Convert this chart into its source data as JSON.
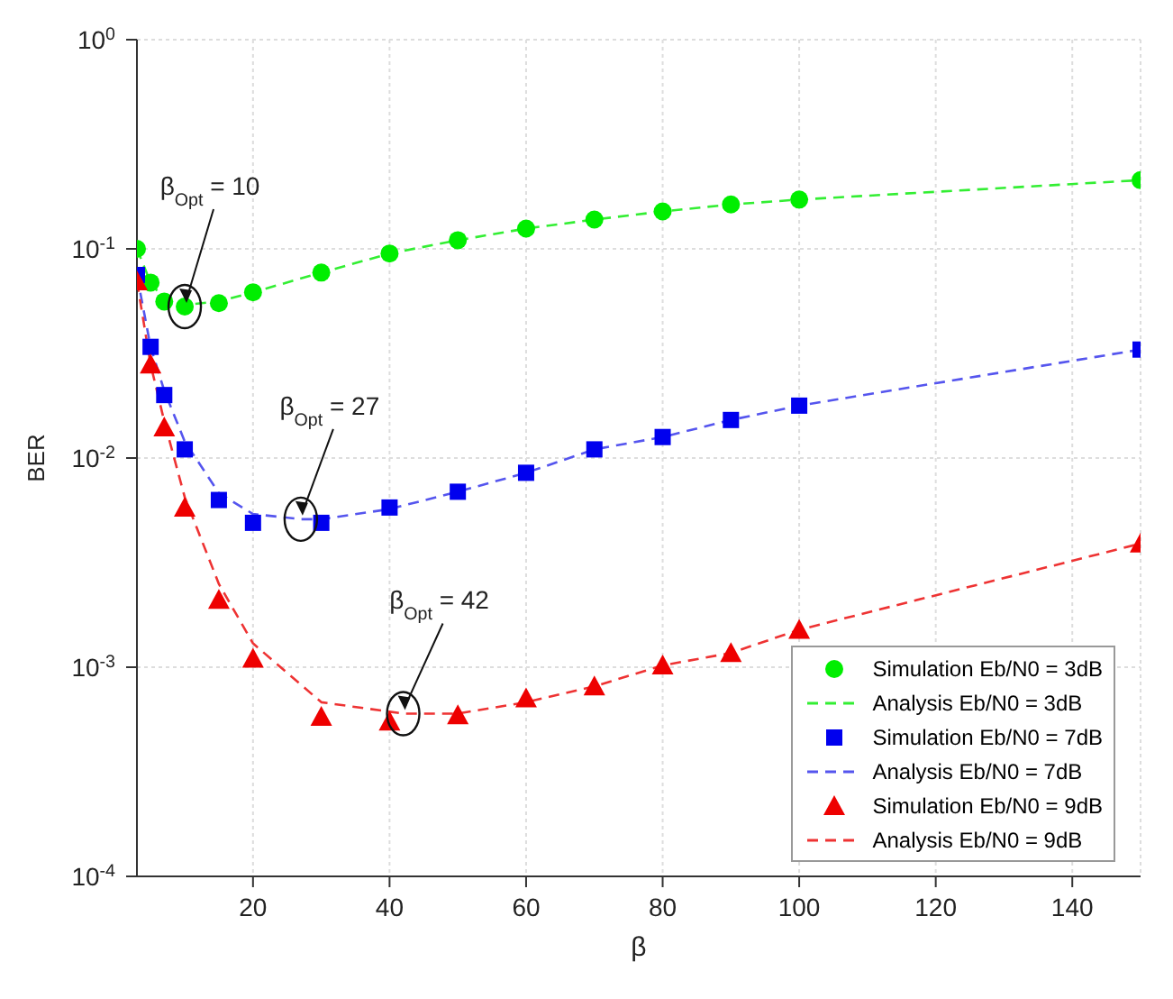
{
  "chart_data": {
    "type": "line",
    "xlabel": "β",
    "ylabel": "BER",
    "log": "y",
    "grid": true,
    "legend": "bottom right",
    "xlim": [
      3,
      150
    ],
    "xticks": [
      20,
      40,
      60,
      80,
      100,
      120,
      140
    ],
    "ylim": [
      0.0001,
      1
    ],
    "yticks": [
      {
        "value": 1,
        "label": "10$^{0}$"
      },
      {
        "value": 0.1,
        "label": "10$^{-1}$"
      },
      {
        "value": 0.01,
        "label": "10$^{-2}$"
      },
      {
        "value": 0.001,
        "label": "10$^{-3}$"
      },
      {
        "value": 0.0001,
        "label": "10$^{-4}$"
      }
    ],
    "series": [
      {
        "name": "Simulation Eb/N0 = 3dB",
        "type": "scatter",
        "marker": "circle",
        "color": "#00ee00",
        "x": [
          3,
          5,
          7,
          10,
          15,
          20,
          30,
          40,
          50,
          60,
          70,
          80,
          90,
          100,
          150
        ],
        "values": [
          0.1,
          0.069,
          0.056,
          0.053,
          0.055,
          0.062,
          0.077,
          0.095,
          0.11,
          0.125,
          0.138,
          0.151,
          0.163,
          0.172,
          0.213
        ]
      },
      {
        "name": "Analysis Eb/N0 = 3dB",
        "type": "line",
        "line_style": "dashed",
        "marker": "none",
        "color": "#33ee33",
        "x": [
          3,
          5,
          7,
          10,
          15,
          20,
          30,
          40,
          50,
          60,
          70,
          80,
          90,
          100,
          150
        ],
        "values": [
          0.1,
          0.069,
          0.057,
          0.054,
          0.056,
          0.062,
          0.077,
          0.095,
          0.11,
          0.125,
          0.138,
          0.151,
          0.163,
          0.172,
          0.213
        ]
      },
      {
        "name": "Simulation Eb/N0 = 7dB",
        "type": "scatter",
        "marker": "square",
        "color": "#0000ee",
        "x": [
          3,
          5,
          7,
          10,
          15,
          20,
          30,
          40,
          50,
          60,
          70,
          80,
          90,
          100,
          150
        ],
        "values": [
          0.075,
          0.034,
          0.02,
          0.011,
          0.0063,
          0.0049,
          0.0049,
          0.0058,
          0.0069,
          0.0085,
          0.011,
          0.0126,
          0.0152,
          0.0178,
          0.033
        ]
      },
      {
        "name": "Analysis Eb/N0 = 7dB",
        "type": "line",
        "line_style": "dashed",
        "marker": "none",
        "color": "#5555ee",
        "x": [
          3,
          5,
          7,
          10,
          15,
          20,
          27,
          30,
          40,
          50,
          60,
          70,
          80,
          90,
          100,
          150
        ],
        "values": [
          0.075,
          0.034,
          0.021,
          0.012,
          0.0068,
          0.0054,
          0.0051,
          0.0051,
          0.0057,
          0.0069,
          0.0085,
          0.011,
          0.0126,
          0.0152,
          0.0178,
          0.033
        ]
      },
      {
        "name": "Simulation Eb/N0 = 9dB",
        "type": "scatter",
        "marker": "triangle",
        "color": "#ee0000",
        "x": [
          3,
          5,
          7,
          10,
          15,
          20,
          30,
          40,
          50,
          60,
          70,
          80,
          90,
          100,
          150
        ],
        "values": [
          0.07,
          0.028,
          0.014,
          0.0058,
          0.0021,
          0.0011,
          0.00058,
          0.00055,
          0.00059,
          0.00071,
          0.00081,
          0.00102,
          0.00117,
          0.00151,
          0.0039
        ]
      },
      {
        "name": "Analysis Eb/N0 = 9dB",
        "type": "line",
        "line_style": "dashed",
        "marker": "none",
        "color": "#ee3333",
        "x": [
          3,
          5,
          7,
          10,
          15,
          20,
          30,
          42,
          50,
          60,
          70,
          80,
          90,
          100,
          150
        ],
        "values": [
          0.07,
          0.028,
          0.015,
          0.0065,
          0.0025,
          0.0013,
          0.00068,
          0.0006,
          0.0006,
          0.00068,
          0.00081,
          0.00102,
          0.00117,
          0.00151,
          0.0039
        ]
      }
    ],
    "annotations": [
      {
        "text": "β$_{Opt}$ = 10",
        "x": 10,
        "y": 0.053
      },
      {
        "text": "β$_{Opt}$ = 27",
        "x": 27,
        "y": 0.0051
      },
      {
        "text": "β$_{Opt}$ = 42",
        "x": 42,
        "y": 0.0006
      }
    ]
  }
}
